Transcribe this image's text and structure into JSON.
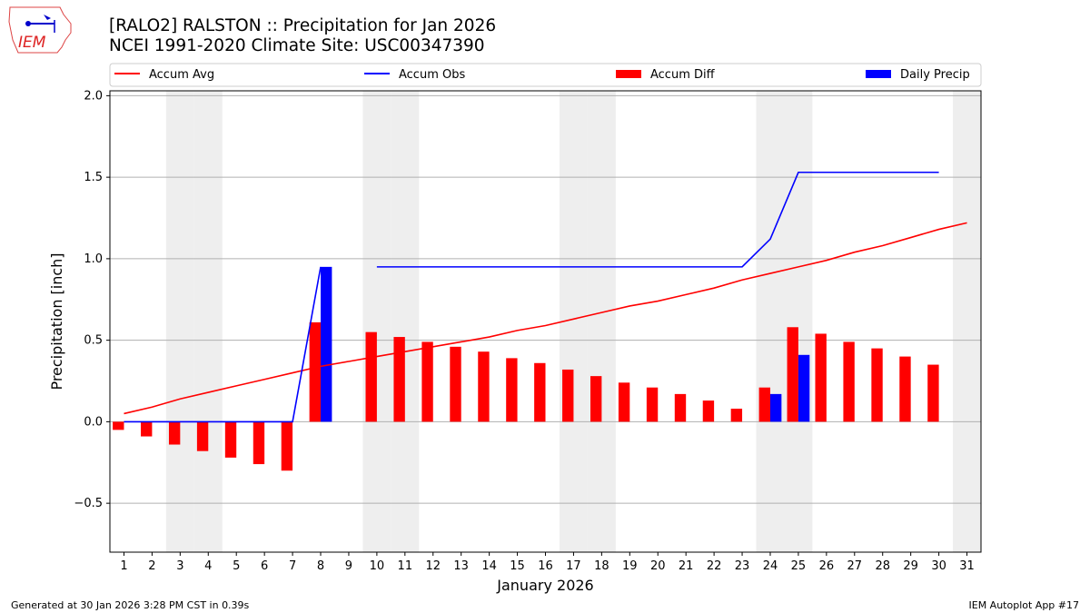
{
  "header": {
    "title_line1": "[RALO2] RALSTON :: Precipitation for Jan 2026",
    "title_line2": "NCEI 1991-2020 Climate Site: USC00347390",
    "logo_text": "IEM"
  },
  "footer": {
    "left": "Generated at 30 Jan 2026 3:28 PM CST in 0.39s",
    "right": "IEM Autoplot App #17"
  },
  "chart_data": {
    "type": "bar",
    "xlabel": "January 2026",
    "ylabel": "Precipitation [inch]",
    "xlim": [
      0.5,
      31.5
    ],
    "ylim": [
      -0.8,
      2.03
    ],
    "yticks": [
      -0.5,
      0.0,
      0.5,
      1.0,
      1.5,
      2.0
    ],
    "ytick_labels": [
      "−0.5",
      "0.0",
      "0.5",
      "1.0",
      "1.5",
      "2.0"
    ],
    "x": [
      1,
      2,
      3,
      4,
      5,
      6,
      7,
      8,
      9,
      10,
      11,
      12,
      13,
      14,
      15,
      16,
      17,
      18,
      19,
      20,
      21,
      22,
      23,
      24,
      25,
      26,
      27,
      28,
      29,
      30,
      31
    ],
    "grid": "horizontal",
    "legend_placement": "top",
    "weekend_shading_days": [
      3,
      4,
      10,
      11,
      17,
      18,
      24,
      25,
      31
    ],
    "shading_color": "#eeeeee",
    "series": [
      {
        "name": "Accum Avg",
        "kind": "line",
        "color": "#ff0000",
        "values": [
          0.05,
          0.09,
          0.14,
          0.18,
          0.22,
          0.26,
          0.3,
          0.34,
          0.37,
          0.4,
          0.43,
          0.46,
          0.49,
          0.52,
          0.56,
          0.59,
          0.63,
          0.67,
          0.71,
          0.74,
          0.78,
          0.82,
          0.87,
          0.91,
          0.95,
          0.99,
          1.04,
          1.08,
          1.13,
          1.18,
          1.22
        ]
      },
      {
        "name": "Accum Obs",
        "kind": "line",
        "color": "#0000ff",
        "values": [
          0,
          0,
          0,
          0,
          0,
          0,
          0,
          0.95,
          null,
          0.95,
          0.95,
          0.95,
          0.95,
          0.95,
          0.95,
          0.95,
          0.95,
          0.95,
          0.95,
          0.95,
          0.95,
          0.95,
          0.95,
          1.12,
          1.53,
          1.53,
          1.53,
          1.53,
          1.53,
          1.53,
          null
        ]
      },
      {
        "name": "Accum Diff",
        "kind": "bar",
        "color": "#ff0000",
        "values": [
          -0.05,
          -0.09,
          -0.14,
          -0.18,
          -0.22,
          -0.26,
          -0.3,
          0.61,
          null,
          0.55,
          0.52,
          0.49,
          0.46,
          0.43,
          0.39,
          0.36,
          0.32,
          0.28,
          0.24,
          0.21,
          0.17,
          0.13,
          0.08,
          0.21,
          0.58,
          0.54,
          0.49,
          0.45,
          0.4,
          0.35,
          null
        ]
      },
      {
        "name": "Daily Precip",
        "kind": "bar",
        "color": "#0000ff",
        "values": [
          0,
          0,
          0,
          0,
          0,
          0,
          0,
          0.95,
          null,
          0,
          0,
          0,
          0,
          0,
          0,
          0,
          0,
          0,
          0,
          0,
          0,
          0,
          0,
          0.17,
          0.41,
          0,
          0,
          0,
          0,
          0,
          null
        ]
      }
    ]
  }
}
